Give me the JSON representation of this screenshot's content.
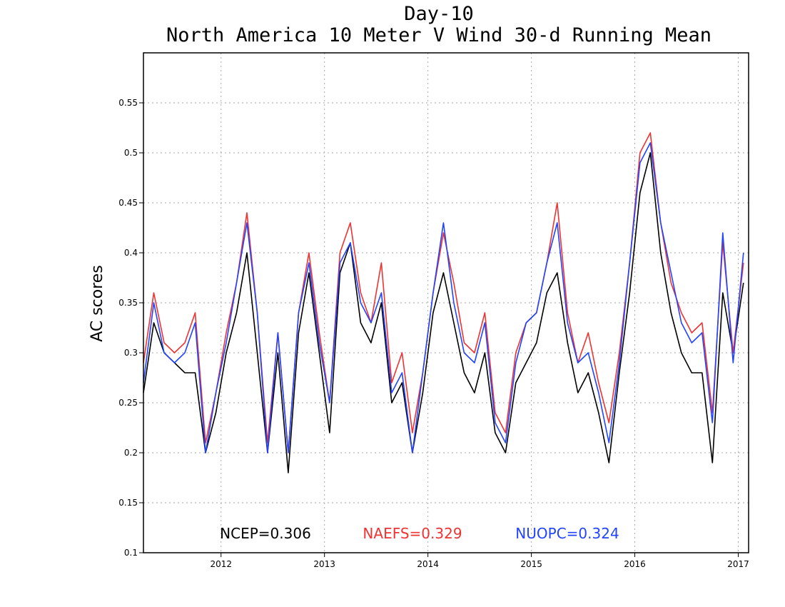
{
  "chart_data": {
    "type": "line",
    "title": "Day-10",
    "subtitle": "North America 10 Meter V Wind 30-d Running Mean",
    "xlabel": "",
    "ylabel": "AC scores",
    "xlim": [
      2011.25,
      2017.1
    ],
    "ylim": [
      0.1,
      0.6
    ],
    "x_ticks": [
      {
        "value": 2012,
        "label": "2012"
      },
      {
        "value": 2013,
        "label": "2013"
      },
      {
        "value": 2014,
        "label": "2014"
      },
      {
        "value": 2015,
        "label": "2015"
      },
      {
        "value": 2016,
        "label": "2016"
      },
      {
        "value": 2017,
        "label": "2017"
      }
    ],
    "y_ticks": [
      {
        "value": 0.1,
        "label": "0.1"
      },
      {
        "value": 0.15,
        "label": "0.15"
      },
      {
        "value": 0.2,
        "label": "0.2"
      },
      {
        "value": 0.25,
        "label": "0.25"
      },
      {
        "value": 0.3,
        "label": "0.3"
      },
      {
        "value": 0.35,
        "label": "0.35"
      },
      {
        "value": 0.4,
        "label": "0.4"
      },
      {
        "value": 0.45,
        "label": "0.45"
      },
      {
        "value": 0.5,
        "label": "0.5"
      },
      {
        "value": 0.55,
        "label": "0.55"
      }
    ],
    "grid": true,
    "legend_placement": "bottom",
    "legend": [
      {
        "label": "NCEP=0.306",
        "color": "#000000"
      },
      {
        "label": "NAEFS=0.329",
        "color": "#ee3333"
      },
      {
        "label": "NUOPC=0.324",
        "color": "#2244ff"
      }
    ],
    "x": [
      2011.25,
      2011.35,
      2011.45,
      2011.55,
      2011.65,
      2011.75,
      2011.85,
      2011.95,
      2012.05,
      2012.15,
      2012.25,
      2012.35,
      2012.45,
      2012.55,
      2012.65,
      2012.75,
      2012.85,
      2012.95,
      2013.05,
      2013.15,
      2013.25,
      2013.35,
      2013.45,
      2013.55,
      2013.65,
      2013.75,
      2013.85,
      2013.95,
      2014.05,
      2014.15,
      2014.25,
      2014.35,
      2014.45,
      2014.55,
      2014.65,
      2014.75,
      2014.85,
      2014.95,
      2015.05,
      2015.15,
      2015.25,
      2015.35,
      2015.45,
      2015.55,
      2015.65,
      2015.75,
      2015.85,
      2015.95,
      2016.05,
      2016.15,
      2016.25,
      2016.35,
      2016.45,
      2016.55,
      2016.65,
      2016.75,
      2016.85,
      2016.95,
      2017.05
    ],
    "series": [
      {
        "name": "NCEP",
        "color": "#000000",
        "values": [
          0.26,
          0.33,
          0.3,
          0.29,
          0.28,
          0.28,
          0.2,
          0.24,
          0.3,
          0.34,
          0.4,
          0.3,
          0.2,
          0.3,
          0.18,
          0.32,
          0.38,
          0.3,
          0.22,
          0.38,
          0.41,
          0.33,
          0.31,
          0.35,
          0.25,
          0.27,
          0.2,
          0.26,
          0.34,
          0.38,
          0.33,
          0.28,
          0.26,
          0.3,
          0.22,
          0.2,
          0.27,
          0.29,
          0.31,
          0.36,
          0.38,
          0.31,
          0.26,
          0.28,
          0.24,
          0.19,
          0.28,
          0.36,
          0.46,
          0.5,
          0.4,
          0.34,
          0.3,
          0.28,
          0.28,
          0.19,
          0.36,
          0.3,
          0.37
        ]
      },
      {
        "name": "NAEFS",
        "color": "#ee3333",
        "values": [
          0.29,
          0.36,
          0.31,
          0.3,
          0.31,
          0.34,
          0.21,
          0.26,
          0.32,
          0.37,
          0.44,
          0.34,
          0.21,
          0.32,
          0.2,
          0.34,
          0.4,
          0.32,
          0.25,
          0.4,
          0.43,
          0.36,
          0.33,
          0.39,
          0.27,
          0.3,
          0.22,
          0.28,
          0.36,
          0.42,
          0.37,
          0.31,
          0.3,
          0.34,
          0.24,
          0.22,
          0.3,
          0.33,
          0.34,
          0.39,
          0.45,
          0.34,
          0.29,
          0.32,
          0.27,
          0.23,
          0.3,
          0.39,
          0.5,
          0.52,
          0.43,
          0.37,
          0.34,
          0.32,
          0.33,
          0.24,
          0.41,
          0.3,
          0.39
        ]
      },
      {
        "name": "NUOPC",
        "color": "#2244ff",
        "values": [
          0.27,
          0.35,
          0.3,
          0.29,
          0.3,
          0.33,
          0.2,
          0.26,
          0.31,
          0.37,
          0.43,
          0.34,
          0.2,
          0.32,
          0.2,
          0.34,
          0.39,
          0.31,
          0.25,
          0.39,
          0.41,
          0.35,
          0.33,
          0.36,
          0.26,
          0.28,
          0.2,
          0.28,
          0.36,
          0.43,
          0.35,
          0.3,
          0.29,
          0.33,
          0.23,
          0.21,
          0.29,
          0.33,
          0.34,
          0.39,
          0.43,
          0.33,
          0.29,
          0.3,
          0.26,
          0.21,
          0.29,
          0.39,
          0.49,
          0.51,
          0.43,
          0.38,
          0.33,
          0.31,
          0.32,
          0.23,
          0.42,
          0.29,
          0.4
        ]
      }
    ]
  }
}
